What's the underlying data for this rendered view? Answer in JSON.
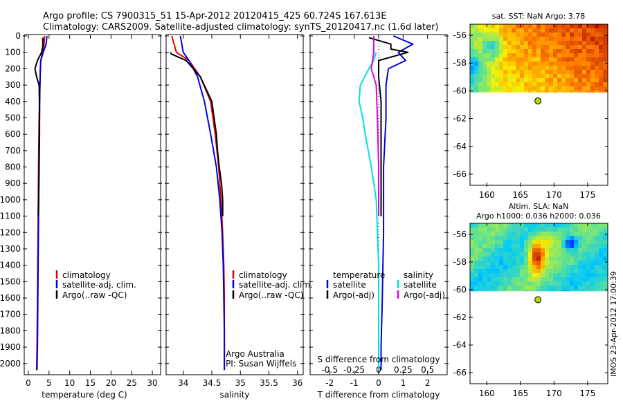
{
  "header": {
    "line1": "Argo profile: CS 7900315_51 15-Apr-2012 20120415_425 60.724S 167.613E",
    "line2": "Climatology: CARS2009. Satellite-adjusted climatology: synTS_20120417.nc (1.6d later)"
  },
  "timestamp": "IMOS 23-Apr-2012 17:00:39",
  "colors": {
    "climatology": "#e00000",
    "satellite": "#0000dd",
    "argo": "#000000",
    "sat_salinity": "#00e0e0",
    "argo_salinity": "#e000e0",
    "float_marker": "#aadd00"
  },
  "chart_data": [
    {
      "id": "temperature",
      "type": "line",
      "xlabel": "temperature (deg C)",
      "ylabel": "",
      "xlim": [
        -1,
        32
      ],
      "ylim": [
        2060,
        0
      ],
      "xticks": [
        "0",
        "5",
        "10",
        "15",
        "20",
        "25",
        "30"
      ],
      "yticks": [
        "0",
        "100",
        "200",
        "300",
        "400",
        "500",
        "600",
        "700",
        "800",
        "900",
        "1000",
        "1100",
        "1200",
        "1300",
        "1400",
        "1500",
        "1600",
        "1700",
        "1800",
        "1900",
        "2000"
      ],
      "legend": [
        "climatology",
        "satellite-adj. clim.",
        "Argo(..raw -QC)"
      ],
      "series": [
        {
          "name": "climatology",
          "color": "#e00000",
          "x": [
            3.9,
            3.8,
            3.4,
            3.0,
            2.9,
            2.8,
            2.6,
            2.5,
            2.4,
            2.3,
            2.2,
            2.1,
            2.0
          ],
          "y": [
            0,
            50,
            100,
            150,
            200,
            300,
            500,
            700,
            1000,
            1300,
            1600,
            1900,
            2040
          ]
        },
        {
          "name": "satellite-adj. clim.",
          "color": "#0000dd",
          "x": [
            4.5,
            4.3,
            3.6,
            3.0,
            2.9,
            2.8,
            2.7,
            2.6,
            2.5,
            2.4,
            2.3,
            2.2,
            2.1
          ],
          "y": [
            0,
            50,
            100,
            150,
            200,
            300,
            500,
            700,
            1000,
            1300,
            1600,
            1900,
            2040
          ]
        },
        {
          "name": "Argo(..raw -QC)",
          "color": "#000000",
          "x": [
            3.5,
            3.5,
            3.2,
            2.2,
            1.6,
            2.0,
            2.6,
            2.7,
            2.7,
            2.6,
            2.5,
            2.4
          ],
          "y": [
            10,
            60,
            100,
            150,
            200,
            250,
            300,
            450,
            600,
            800,
            1000,
            1100
          ]
        }
      ]
    },
    {
      "id": "salinity",
      "type": "line",
      "xlabel": "salinity",
      "xlim": [
        33.7,
        36.1
      ],
      "ylim": [
        2060,
        0
      ],
      "xticks": [
        "34",
        "34.5",
        "35",
        "35.5",
        "36"
      ],
      "legend": [
        "climatology",
        "satellite-adj. clim.",
        "Argo(..raw -QC)"
      ],
      "annotations": [
        "Argo Australia",
        "PI: Susan Wijffels"
      ],
      "series": [
        {
          "name": "climatology",
          "color": "#e00000",
          "x": [
            33.8,
            33.88,
            34.1,
            34.3,
            34.48,
            34.56,
            34.62,
            34.66,
            34.69,
            34.71,
            34.72,
            34.72,
            34.72
          ],
          "y": [
            0,
            100,
            150,
            250,
            400,
            600,
            800,
            1000,
            1200,
            1400,
            1600,
            1800,
            2040
          ]
        },
        {
          "name": "satellite-adj. clim.",
          "color": "#0000dd",
          "x": [
            33.95,
            34.0,
            34.1,
            34.25,
            34.37,
            34.48,
            34.58,
            34.64,
            34.68,
            34.7,
            34.71,
            34.72,
            34.72
          ],
          "y": [
            0,
            100,
            150,
            250,
            400,
            600,
            800,
            1000,
            1200,
            1400,
            1600,
            1800,
            2040
          ]
        },
        {
          "name": "Argo(..raw -QC)",
          "color": "#000000",
          "x": [
            33.78,
            33.79,
            34.05,
            34.3,
            34.5,
            34.58,
            34.6,
            34.63,
            34.67,
            34.69,
            34.69
          ],
          "y": [
            100,
            110,
            150,
            250,
            400,
            600,
            700,
            800,
            900,
            1000,
            1100
          ]
        }
      ]
    },
    {
      "id": "difference",
      "type": "line",
      "xlabel": "T difference from climatology",
      "xlabel_top": "S difference from climatology",
      "xlim": [
        -2.8,
        2.8
      ],
      "ylim": [
        2060,
        0
      ],
      "xticks_T": [
        "-2",
        "-1",
        "0",
        "1",
        "2"
      ],
      "xticks_S": [
        "-0.5",
        "-0.25",
        "0",
        "0.25",
        "0.5"
      ],
      "legend_headers": [
        "temperature",
        "salinity"
      ],
      "legend": [
        "satellite",
        "Argo(-adj)",
        "satellite",
        "Argo(-adj)"
      ],
      "series": [
        {
          "name": "temperature satellite",
          "color": "#0000dd",
          "x": [
            0.6,
            1.4,
            0.8,
            1.1,
            0.4,
            0.3,
            0.3,
            0.2,
            0.2,
            0.15,
            0.1,
            0.1
          ],
          "y": [
            0,
            50,
            100,
            150,
            200,
            300,
            500,
            800,
            1200,
            1600,
            1900,
            2040
          ]
        },
        {
          "name": "temperature Argo(-adj)",
          "color": "#000000",
          "x": [
            -0.4,
            0.5,
            0.5,
            1.2,
            0.0,
            0.0,
            0.1,
            0.1,
            0.1,
            0.1
          ],
          "y": [
            10,
            50,
            80,
            100,
            150,
            250,
            400,
            700,
            900,
            1100
          ]
        },
        {
          "name": "salinity satellite",
          "color": "#00e0e0",
          "x": [
            -0.1,
            -0.2,
            -0.4,
            -0.75,
            -0.8,
            -0.65,
            -0.55,
            -0.3,
            -0.1,
            0.0,
            0.0
          ],
          "y": [
            100,
            150,
            200,
            300,
            400,
            500,
            600,
            800,
            1000,
            1400,
            2040
          ]
        },
        {
          "name": "salinity Argo(-adj)",
          "color": "#e000e0",
          "x": [
            -0.2,
            -0.2,
            -0.3,
            -0.1,
            -0.05,
            0.0,
            0.0
          ],
          "y": [
            0,
            100,
            200,
            300,
            500,
            800,
            1100
          ]
        }
      ]
    },
    {
      "id": "sst_map",
      "type": "heatmap",
      "title": "sat. SST: NaN Argo: 3.78",
      "xlim": [
        157.5,
        178
      ],
      "ylim": [
        -66.8,
        -55.2
      ],
      "xticks": [
        "160",
        "165",
        "170",
        "175"
      ],
      "yticks": [
        "-56",
        "-58",
        "-60",
        "-62",
        "-64",
        "-66"
      ],
      "data_rows_lat": [
        -55.2,
        -60.1
      ],
      "float": {
        "lon": 167.613,
        "lat": -60.724
      }
    },
    {
      "id": "sla_map",
      "type": "heatmap",
      "title": "Altim. SLA: NaN",
      "subtitle": "Argo h1000: 0.036 h2000: 0.036",
      "xlim": [
        157.5,
        178
      ],
      "ylim": [
        -66.8,
        -55.2
      ],
      "xticks": [
        "160",
        "165",
        "170",
        "175"
      ],
      "yticks": [
        "-56",
        "-58",
        "-60",
        "-62",
        "-64",
        "-66"
      ],
      "data_rows_lat": [
        -55.2,
        -60.1
      ],
      "float": {
        "lon": 167.613,
        "lat": -60.724
      }
    }
  ]
}
